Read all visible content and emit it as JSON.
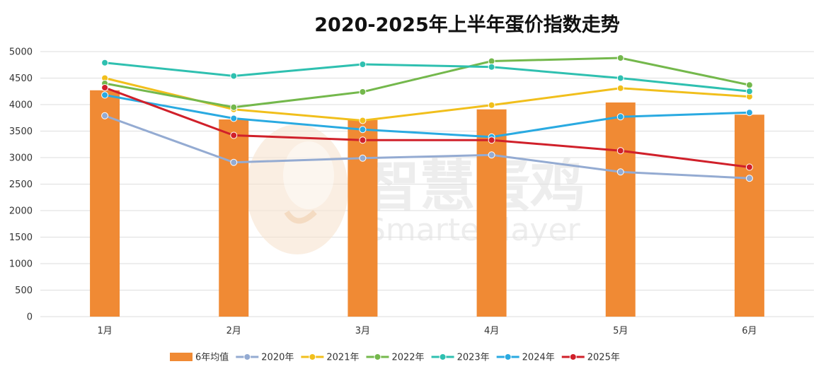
{
  "colors": {
    "avg": "#f08a34",
    "s2020": "#94abd2",
    "s2021": "#f1bf1c",
    "s2022": "#74b84c",
    "s2023": "#2fc0b0",
    "s2024": "#2aaae1",
    "s2025": "#d0202a",
    "grid": "#dedede",
    "watermark_logo": "#f6e3cf"
  },
  "watermark": {
    "logo_icon": "egg-logo-icon",
    "cn": "智慧蛋鸡",
    "en": "Smarter layer"
  },
  "chart_data": {
    "type": "bar",
    "title": "2020-2025年上半年蛋价指数走势",
    "categories": [
      "1月",
      "2月",
      "3月",
      "4月",
      "5月",
      "6月"
    ],
    "ylim": [
      0,
      5000
    ],
    "yticks": [
      0,
      500,
      1000,
      1500,
      2000,
      2500,
      3000,
      3500,
      4000,
      4500,
      5000
    ],
    "grid": true,
    "legend_position": "bottom",
    "bar_series": {
      "name": "6年均值",
      "values": [
        4270,
        3720,
        3710,
        3910,
        4040,
        3810
      ]
    },
    "line_series": [
      {
        "name": "2020年",
        "values": [
          3790,
          2910,
          2990,
          3050,
          2730,
          2610
        ]
      },
      {
        "name": "2021年",
        "values": [
          4500,
          3910,
          3700,
          3990,
          4310,
          4150
        ]
      },
      {
        "name": "2022年",
        "values": [
          4400,
          3950,
          4240,
          4820,
          4880,
          4370
        ]
      },
      {
        "name": "2023年",
        "values": [
          4790,
          4540,
          4760,
          4710,
          4500,
          4250
        ]
      },
      {
        "name": "2024年",
        "values": [
          4180,
          3740,
          3530,
          3390,
          3770,
          3850
        ]
      },
      {
        "name": "2025年",
        "values": [
          4320,
          3420,
          3330,
          3330,
          3130,
          2820
        ]
      }
    ]
  }
}
